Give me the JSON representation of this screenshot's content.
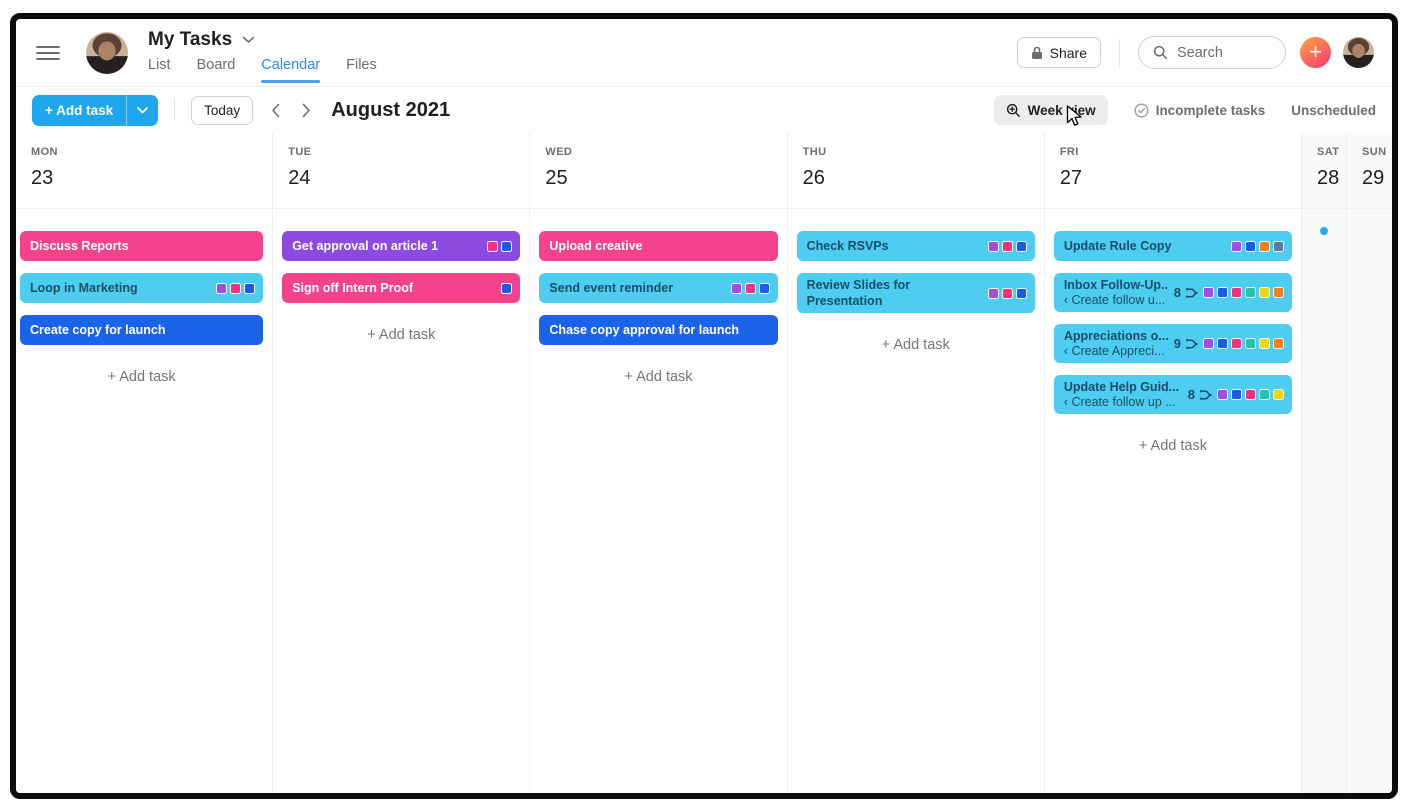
{
  "topbar": {
    "title": "My Tasks",
    "tabs": [
      {
        "label": "List",
        "active": false
      },
      {
        "label": "Board",
        "active": false
      },
      {
        "label": "Calendar",
        "active": true
      },
      {
        "label": "Files",
        "active": false
      }
    ],
    "share_label": "Share",
    "search_placeholder": "Search"
  },
  "toolbar": {
    "add_task_label": "+ Add task",
    "today_label": "Today",
    "month_title": "August 2021",
    "week_view_label": "Week view",
    "incomplete_tasks_label": "Incomplete tasks",
    "unscheduled_label": "Unscheduled"
  },
  "colors": {
    "pink": "#f5428c",
    "cyan": "#4fcdf0",
    "blue": "#1b63e8",
    "purple": "#8c4be0",
    "square_purple": "#a44be0",
    "square_pink": "#f5317f",
    "square_blue": "#1c5ae8",
    "square_teal": "#27c4ad",
    "square_yellow": "#f2d513",
    "square_orange": "#f87d18",
    "square_slate": "#5b7a9e",
    "accent_tab": "#2b8bea",
    "add_task_button": "#1ea7ec",
    "sat_dot": "#29a9f0"
  },
  "calendar": {
    "add_task_label": "+ Add task",
    "days": [
      {
        "name": "MON",
        "date": "23",
        "weekend": false,
        "add_task": true,
        "tasks": [
          {
            "title": "Discuss Reports",
            "bg": "pink"
          },
          {
            "title": "Loop in Marketing",
            "bg": "cyan",
            "squares": [
              "purple",
              "pink",
              "blue"
            ]
          },
          {
            "title": "Create copy for launch",
            "bg": "blue"
          }
        ]
      },
      {
        "name": "TUE",
        "date": "24",
        "weekend": false,
        "add_task": true,
        "tasks": [
          {
            "title": "Get approval on article 1",
            "bg": "purple",
            "squares": [
              "pink",
              "blue"
            ]
          },
          {
            "title": "Sign off Intern Proof",
            "bg": "pink",
            "squares": [
              "blue"
            ]
          }
        ]
      },
      {
        "name": "WED",
        "date": "25",
        "weekend": false,
        "add_task": true,
        "tasks": [
          {
            "title": "Upload creative",
            "bg": "pink"
          },
          {
            "title": "Send event reminder",
            "bg": "cyan",
            "squares": [
              "purple",
              "pink",
              "blue"
            ]
          },
          {
            "title": "Chase copy approval for launch",
            "bg": "blue"
          }
        ]
      },
      {
        "name": "THU",
        "date": "26",
        "weekend": false,
        "add_task": true,
        "tasks": [
          {
            "title": "Check RSVPs",
            "bg": "cyan",
            "squares": [
              "purple",
              "pink",
              "blue"
            ]
          },
          {
            "title": "Review Slides for Presentation",
            "bg": "cyan",
            "two_line": true,
            "squares": [
              "purple",
              "pink",
              "blue"
            ]
          }
        ]
      },
      {
        "name": "FRI",
        "date": "27",
        "weekend": false,
        "add_task": true,
        "tasks": [
          {
            "title": "Update Rule Copy",
            "bg": "cyan",
            "squares": [
              "purple",
              "blue",
              "orange",
              "slate"
            ]
          },
          {
            "title": "Inbox Follow-Up...",
            "subtitle": "‹ Create follow u...",
            "count": "8",
            "bg": "cyan",
            "squares": [
              "purple",
              "blue",
              "pink",
              "teal",
              "yellow",
              "orange"
            ]
          },
          {
            "title": "Appreciations o...",
            "subtitle": "‹ Create Appreci...",
            "count": "9",
            "bg": "cyan",
            "squares": [
              "purple",
              "blue",
              "pink",
              "teal",
              "yellow",
              "orange"
            ]
          },
          {
            "title": "Update Help Guid...",
            "subtitle": "‹ Create follow up ...",
            "count": "8",
            "bg": "cyan",
            "squares": [
              "purple",
              "blue",
              "pink",
              "teal",
              "yellow"
            ]
          }
        ]
      },
      {
        "name": "SAT",
        "date": "28",
        "weekend": true,
        "dot": true,
        "tasks": []
      },
      {
        "name": "SUN",
        "date": "29",
        "weekend": true,
        "tasks": []
      }
    ]
  }
}
